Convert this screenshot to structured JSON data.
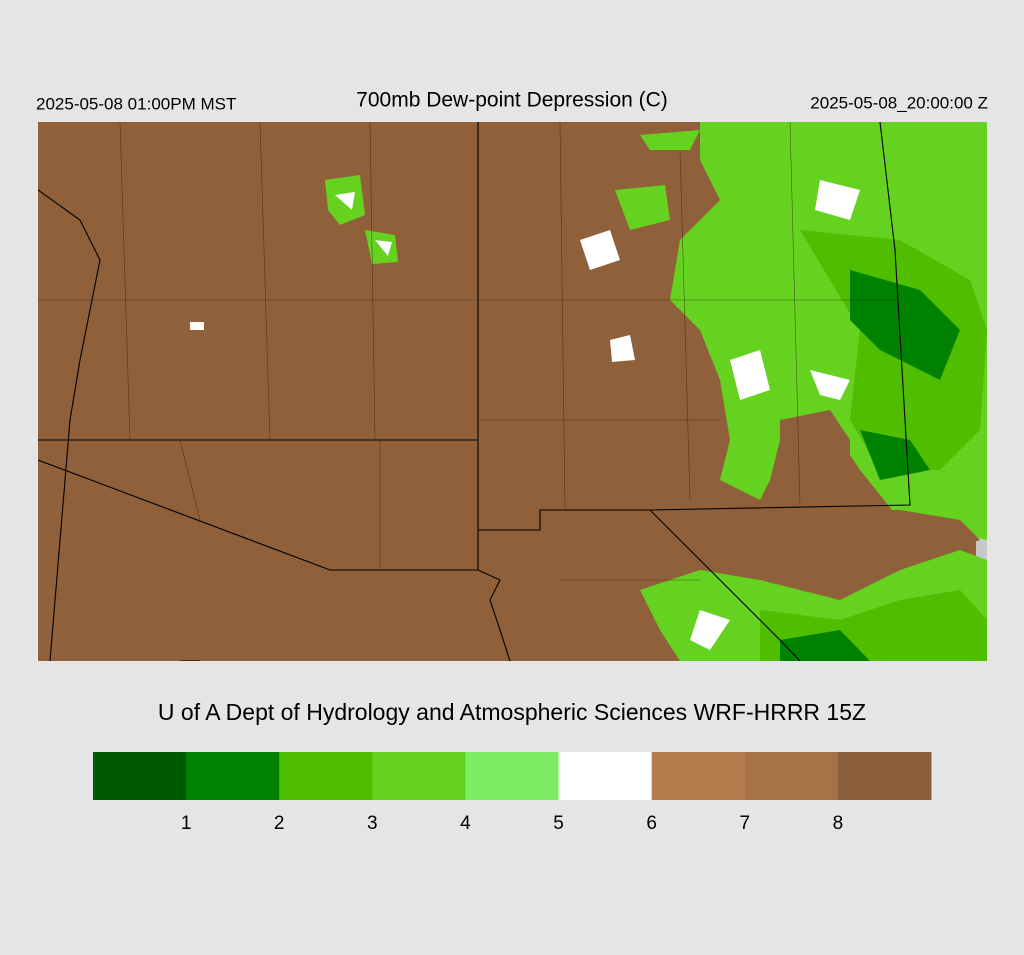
{
  "header": {
    "title": "700mb Dew-point Depression (C)",
    "local_time": "2025-05-08 01:00PM MST",
    "valid_time": "2025-05-08_20:00:00 Z"
  },
  "credit": "U of A Dept of Hydrology and Atmospheric Sciences WRF-HRRR 15Z",
  "colorbar": {
    "colors": [
      "#005a00",
      "#008200",
      "#50be00",
      "#64d21e",
      "#7ced64",
      "#ffffff",
      "#b47d4b",
      "#a57346",
      "#8c5f3c"
    ],
    "labels": [
      1,
      2,
      3,
      4,
      5,
      6,
      7,
      8
    ]
  }
}
